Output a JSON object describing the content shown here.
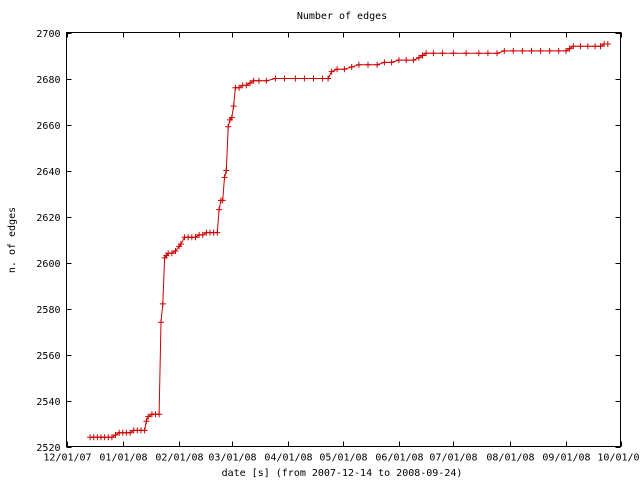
{
  "chart_data": {
    "type": "line",
    "title": "Number of edges",
    "xlabel": "date [s] (from 2007-12-14 to 2008-09-24)",
    "ylabel": "n. of edges",
    "xlim": [
      "2007-12-01",
      "2008-10-01"
    ],
    "ylim": [
      2520,
      2700
    ],
    "x_ticks": [
      "12/01/07",
      "01/01/08",
      "02/01/08",
      "03/01/08",
      "04/01/08",
      "05/01/08",
      "06/01/08",
      "07/01/08",
      "08/01/08",
      "09/01/08",
      "10/01/08"
    ],
    "y_ticks": [
      2520,
      2540,
      2560,
      2580,
      2600,
      2620,
      2640,
      2660,
      2680,
      2700
    ],
    "grid": false,
    "legend": "none",
    "colors": {
      "series": "#cc0000",
      "axes": "#000000",
      "background": "#ffffff"
    },
    "series": [
      {
        "marker": "plus",
        "points": [
          [
            "2007-12-14",
            2524
          ],
          [
            "2007-12-16",
            2524
          ],
          [
            "2007-12-18",
            2524
          ],
          [
            "2007-12-20",
            2524
          ],
          [
            "2007-12-22",
            2524
          ],
          [
            "2007-12-24",
            2524
          ],
          [
            "2007-12-26",
            2524
          ],
          [
            "2007-12-28",
            2525
          ],
          [
            "2007-12-30",
            2526
          ],
          [
            "2008-01-01",
            2526
          ],
          [
            "2008-01-03",
            2526
          ],
          [
            "2008-01-05",
            2526
          ],
          [
            "2008-01-07",
            2527
          ],
          [
            "2008-01-09",
            2527
          ],
          [
            "2008-01-11",
            2527
          ],
          [
            "2008-01-13",
            2527
          ],
          [
            "2008-01-14",
            2531
          ],
          [
            "2008-01-15",
            2533
          ],
          [
            "2008-01-17",
            2534
          ],
          [
            "2008-01-19",
            2534
          ],
          [
            "2008-01-21",
            2534
          ],
          [
            "2008-01-22",
            2574
          ],
          [
            "2008-01-23",
            2582
          ],
          [
            "2008-01-24",
            2602
          ],
          [
            "2008-01-25",
            2603
          ],
          [
            "2008-01-26",
            2604
          ],
          [
            "2008-01-28",
            2604
          ],
          [
            "2008-01-30",
            2605
          ],
          [
            "2008-02-01",
            2607
          ],
          [
            "2008-02-02",
            2608
          ],
          [
            "2008-02-04",
            2611
          ],
          [
            "2008-02-06",
            2611
          ],
          [
            "2008-02-08",
            2611
          ],
          [
            "2008-02-10",
            2611
          ],
          [
            "2008-02-12",
            2612
          ],
          [
            "2008-02-14",
            2612
          ],
          [
            "2008-02-16",
            2613
          ],
          [
            "2008-02-18",
            2613
          ],
          [
            "2008-02-20",
            2613
          ],
          [
            "2008-02-22",
            2613
          ],
          [
            "2008-02-23",
            2623
          ],
          [
            "2008-02-24",
            2627
          ],
          [
            "2008-02-25",
            2627
          ],
          [
            "2008-02-26",
            2637
          ],
          [
            "2008-02-27",
            2640
          ],
          [
            "2008-02-28",
            2659
          ],
          [
            "2008-02-29",
            2662
          ],
          [
            "2008-03-01",
            2663
          ],
          [
            "2008-03-02",
            2668
          ],
          [
            "2008-03-03",
            2676
          ],
          [
            "2008-03-05",
            2676
          ],
          [
            "2008-03-07",
            2677
          ],
          [
            "2008-03-09",
            2677
          ],
          [
            "2008-03-11",
            2678
          ],
          [
            "2008-03-13",
            2679
          ],
          [
            "2008-03-16",
            2679
          ],
          [
            "2008-03-20",
            2679
          ],
          [
            "2008-03-25",
            2680
          ],
          [
            "2008-03-30",
            2680
          ],
          [
            "2008-04-05",
            2680
          ],
          [
            "2008-04-10",
            2680
          ],
          [
            "2008-04-15",
            2680
          ],
          [
            "2008-04-20",
            2680
          ],
          [
            "2008-04-23",
            2680
          ],
          [
            "2008-04-25",
            2683
          ],
          [
            "2008-04-28",
            2684
          ],
          [
            "2008-05-02",
            2684
          ],
          [
            "2008-05-06",
            2685
          ],
          [
            "2008-05-10",
            2686
          ],
          [
            "2008-05-15",
            2686
          ],
          [
            "2008-05-20",
            2686
          ],
          [
            "2008-05-24",
            2687
          ],
          [
            "2008-05-28",
            2687
          ],
          [
            "2008-06-01",
            2688
          ],
          [
            "2008-06-05",
            2688
          ],
          [
            "2008-06-09",
            2688
          ],
          [
            "2008-06-12",
            2689
          ],
          [
            "2008-06-14",
            2690
          ],
          [
            "2008-06-16",
            2691
          ],
          [
            "2008-06-20",
            2691
          ],
          [
            "2008-06-25",
            2691
          ],
          [
            "2008-07-01",
            2691
          ],
          [
            "2008-07-08",
            2691
          ],
          [
            "2008-07-15",
            2691
          ],
          [
            "2008-07-20",
            2691
          ],
          [
            "2008-07-25",
            2691
          ],
          [
            "2008-07-29",
            2692
          ],
          [
            "2008-08-03",
            2692
          ],
          [
            "2008-08-08",
            2692
          ],
          [
            "2008-08-13",
            2692
          ],
          [
            "2008-08-18",
            2692
          ],
          [
            "2008-08-23",
            2692
          ],
          [
            "2008-08-28",
            2692
          ],
          [
            "2008-09-01",
            2692
          ],
          [
            "2008-09-03",
            2693
          ],
          [
            "2008-09-05",
            2694
          ],
          [
            "2008-09-09",
            2694
          ],
          [
            "2008-09-13",
            2694
          ],
          [
            "2008-09-17",
            2694
          ],
          [
            "2008-09-20",
            2694
          ],
          [
            "2008-09-22",
            2695
          ],
          [
            "2008-09-24",
            2695
          ]
        ]
      }
    ]
  }
}
